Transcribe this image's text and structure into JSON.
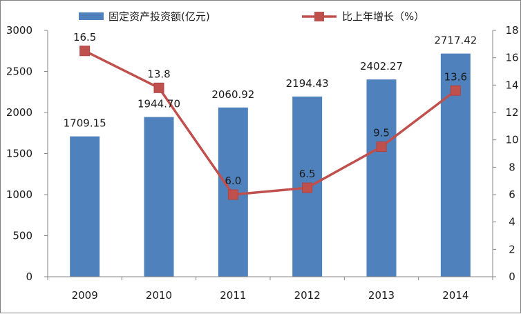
{
  "chart_data": {
    "type": "bar",
    "categories": [
      "2009",
      "2010",
      "2011",
      "2012",
      "2013",
      "2014"
    ],
    "series": [
      {
        "name": "固定资产投资额(亿元)",
        "type": "bar",
        "axis": "left",
        "values": [
          1709.15,
          1944.7,
          2060.92,
          2194.43,
          2402.27,
          2717.42
        ],
        "labels": [
          "1709.15",
          "1944.70",
          "2060.92",
          "2194.43",
          "2402.27",
          "2717.42"
        ],
        "color": "#4f81bd"
      },
      {
        "name": "比上年增长（%）",
        "type": "line",
        "axis": "right",
        "values": [
          16.5,
          13.8,
          6.0,
          6.5,
          9.5,
          13.6
        ],
        "labels": [
          "16.5",
          "13.8",
          "6.0",
          "6.5",
          "9.5",
          "13.6"
        ],
        "color": "#c0504d"
      }
    ],
    "y_left": {
      "range": [
        0,
        3000
      ],
      "ticks": [
        "0",
        "500",
        "1000",
        "1500",
        "2000",
        "2500",
        "3000"
      ]
    },
    "y_right": {
      "range": [
        0,
        18
      ],
      "ticks": [
        "0",
        "2",
        "4",
        "6",
        "8",
        "10",
        "12",
        "14",
        "16",
        "18"
      ]
    },
    "legend_position": "top",
    "grid": false
  }
}
